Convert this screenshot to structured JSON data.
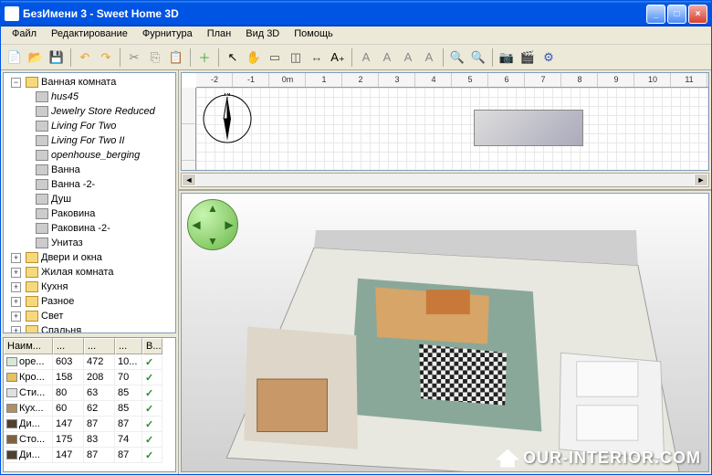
{
  "window": {
    "title": "БезИмени 3 - Sweet Home 3D",
    "min": "_",
    "max": "□",
    "close": "×"
  },
  "menu": [
    "Файл",
    "Редактирование",
    "Фурнитура",
    "План",
    "Вид 3D",
    "Помощь"
  ],
  "toolbar_icons": [
    {
      "name": "new",
      "glyph": "📄",
      "c": "#fff"
    },
    {
      "name": "open",
      "glyph": "📂",
      "c": "#f5d97e"
    },
    {
      "name": "save",
      "glyph": "💾",
      "c": "#88c"
    },
    {
      "sep": true
    },
    {
      "name": "undo",
      "glyph": "↶",
      "c": "#e8a030"
    },
    {
      "name": "redo",
      "glyph": "↷",
      "c": "#e8a030"
    },
    {
      "sep": true
    },
    {
      "name": "cut",
      "glyph": "✂",
      "c": "#888"
    },
    {
      "name": "copy",
      "glyph": "⎘",
      "c": "#888"
    },
    {
      "name": "paste",
      "glyph": "📋",
      "c": "#888"
    },
    {
      "sep": true
    },
    {
      "name": "add-furniture",
      "glyph": "＋",
      "c": "#3a3"
    },
    {
      "sep": true
    },
    {
      "name": "select",
      "glyph": "↖",
      "c": "#000"
    },
    {
      "name": "pan",
      "glyph": "✋",
      "c": "#c88"
    },
    {
      "name": "wall",
      "glyph": "▭",
      "c": "#555"
    },
    {
      "name": "room",
      "glyph": "◫",
      "c": "#555"
    },
    {
      "name": "dimension",
      "glyph": "↔",
      "c": "#555"
    },
    {
      "name": "text",
      "glyph": "A₊",
      "c": "#000"
    },
    {
      "sep": true
    },
    {
      "name": "bold",
      "glyph": "A",
      "c": "#888"
    },
    {
      "name": "italic",
      "glyph": "A",
      "c": "#888"
    },
    {
      "name": "big",
      "glyph": "A",
      "c": "#888"
    },
    {
      "name": "small",
      "glyph": "A",
      "c": "#888"
    },
    {
      "sep": true
    },
    {
      "name": "zoom-in",
      "glyph": "🔍",
      "c": "#35a"
    },
    {
      "name": "zoom-out",
      "glyph": "🔍",
      "c": "#35a"
    },
    {
      "sep": true
    },
    {
      "name": "photo",
      "glyph": "📷",
      "c": "#333"
    },
    {
      "name": "video",
      "glyph": "🎬",
      "c": "#333"
    },
    {
      "name": "prefs",
      "glyph": "⚙",
      "c": "#35a"
    }
  ],
  "tree": {
    "root": "Ванная комната",
    "children": [
      {
        "label": "hus45",
        "italic": true
      },
      {
        "label": "Jewelry Store Reduced",
        "italic": true
      },
      {
        "label": "Living For Two",
        "italic": true
      },
      {
        "label": "Living For Two II",
        "italic": true
      },
      {
        "label": "openhouse_berging",
        "italic": true
      },
      {
        "label": "Ванна",
        "italic": false
      },
      {
        "label": "Ванна -2-",
        "italic": false
      },
      {
        "label": "Душ",
        "italic": false
      },
      {
        "label": "Раковина",
        "italic": false
      },
      {
        "label": "Раковина -2-",
        "italic": false
      },
      {
        "label": "Унитаз",
        "italic": false
      }
    ],
    "categories": [
      "Двери и окна",
      "Жилая комната",
      "Кухня",
      "Разное",
      "Свет",
      "Спальня"
    ]
  },
  "furniture_table": {
    "headers": [
      "Наим...",
      "...",
      "...",
      "...",
      "В..."
    ],
    "rows": [
      {
        "swatch": "#d8e8d8",
        "name": "оре...",
        "w": "603",
        "h": "472",
        "d": "10...",
        "v": true
      },
      {
        "swatch": "#e8c060",
        "name": "Кро...",
        "w": "158",
        "h": "208",
        "d": "70",
        "v": true
      },
      {
        "swatch": "#e0e0e0",
        "name": "Сти...",
        "w": "80",
        "h": "63",
        "d": "85",
        "v": true
      },
      {
        "swatch": "#b09060",
        "name": "Кух...",
        "w": "60",
        "h": "62",
        "d": "85",
        "v": true
      },
      {
        "swatch": "#504030",
        "name": "Ди...",
        "w": "147",
        "h": "87",
        "d": "87",
        "v": true
      },
      {
        "swatch": "#806040",
        "name": "Сто...",
        "w": "175",
        "h": "83",
        "d": "74",
        "v": true
      },
      {
        "swatch": "#504030",
        "name": "Ди...",
        "w": "147",
        "h": "87",
        "d": "87",
        "v": true
      }
    ]
  },
  "ruler_ticks": [
    "-2",
    "-1",
    "0m",
    "1",
    "2",
    "3",
    "4",
    "5",
    "6",
    "7",
    "8",
    "9",
    "10",
    "11"
  ],
  "compass": "N",
  "watermark": "OUR-INTERIOR.COM",
  "colors": {
    "titlebar": "#0054e3",
    "bg": "#ece9d8",
    "border": "#7f9db9"
  }
}
